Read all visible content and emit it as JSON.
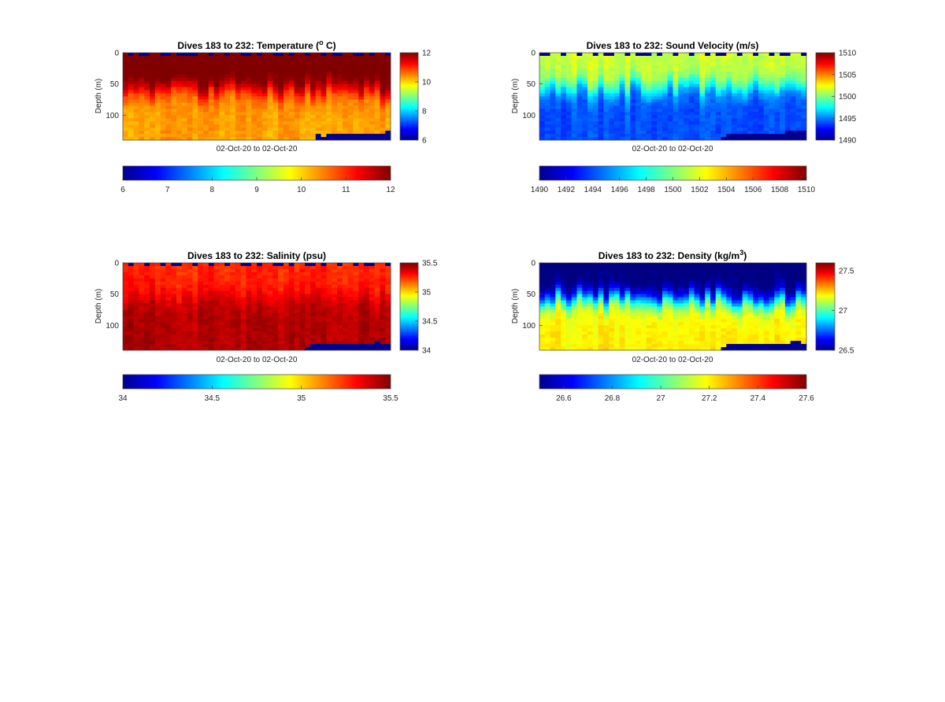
{
  "chart_data": [
    {
      "type": "heatmap",
      "title": "Dives 183 to 232: Temperature (",
      "title_sup": "o",
      "title_tail": " C)",
      "variable": "temperature",
      "xlabel": "02-Oct-20 to 02-Oct-20",
      "ylabel": "Depth (m)",
      "y_ticks": [
        "0",
        "50",
        "100"
      ],
      "y_tick_values": [
        0,
        50,
        100
      ],
      "ylim": [
        0,
        140
      ],
      "clim": [
        6,
        12
      ],
      "colormap": "jet",
      "side_colorbar_ticks": [
        "6",
        "8",
        "10",
        "12"
      ],
      "side_colorbar_values": [
        6,
        8,
        10,
        12
      ],
      "bottom_colorbar_ticks": [
        "6",
        "7",
        "8",
        "9",
        "10",
        "11",
        "12"
      ],
      "bottom_colorbar_values": [
        6,
        7,
        8,
        9,
        10,
        11,
        12
      ],
      "columns": 50,
      "profile": {
        "surface_value": 12.2,
        "deep_value": 10.3,
        "thermocline_depth_m": 62,
        "thermocline_variation_m": 12
      },
      "seafloor_start_fraction": 0.72
    },
    {
      "type": "heatmap",
      "title": "Dives 183 to 232: Sound Velocity (m/s)",
      "title_sup": "",
      "title_tail": "",
      "variable": "sound_velocity",
      "xlabel": "02-Oct-20 to 02-Oct-20",
      "ylabel": "Depth (m)",
      "y_ticks": [
        "0",
        "50",
        "100"
      ],
      "y_tick_values": [
        0,
        50,
        100
      ],
      "ylim": [
        0,
        140
      ],
      "clim": [
        1490,
        1510
      ],
      "colormap": "jet",
      "side_colorbar_ticks": [
        "1490",
        "1495",
        "1500",
        "1505",
        "1510"
      ],
      "side_colorbar_values": [
        1490,
        1495,
        1500,
        1505,
        1510
      ],
      "bottom_colorbar_ticks": [
        "1490",
        "1492",
        "1494",
        "1496",
        "1498",
        "1500",
        "1502",
        "1504",
        "1506",
        "1508",
        "1510"
      ],
      "bottom_colorbar_values": [
        1490,
        1492,
        1494,
        1496,
        1498,
        1500,
        1502,
        1504,
        1506,
        1508,
        1510
      ],
      "columns": 50,
      "profile": {
        "surface_value": 1501.5,
        "deep_value": 1494.0,
        "thermocline_depth_m": 55,
        "thermocline_variation_m": 12
      },
      "seafloor_start_fraction": 0.67
    },
    {
      "type": "heatmap",
      "title": "Dives 183 to 232: Salinity (psu)",
      "title_sup": "",
      "title_tail": "",
      "variable": "salinity",
      "xlabel": "02-Oct-20 to 02-Oct-20",
      "ylabel": "Depth (m)",
      "y_ticks": [
        "0",
        "50",
        "100"
      ],
      "y_tick_values": [
        0,
        50,
        100
      ],
      "ylim": [
        0,
        140
      ],
      "clim": [
        34,
        35.5
      ],
      "colormap": "jet",
      "side_colorbar_ticks": [
        "34",
        "34.5",
        "35",
        "35.5"
      ],
      "side_colorbar_values": [
        34,
        34.5,
        35,
        35.5
      ],
      "bottom_colorbar_ticks": [
        "34",
        "34.5",
        "35",
        "35.5"
      ],
      "bottom_colorbar_values": [
        34,
        34.5,
        35,
        35.5
      ],
      "columns": 50,
      "profile": {
        "surface_value": 35.25,
        "deep_value": 35.42,
        "thermocline_depth_m": 55,
        "thermocline_variation_m": 12
      },
      "seafloor_start_fraction": 0.67
    },
    {
      "type": "heatmap",
      "title": "Dives 183 to 232: Density (kg/m",
      "title_sup": "3",
      "title_tail": ")",
      "variable": "density",
      "xlabel": "02-Oct-20 to 02-Oct-20",
      "ylabel": "Depth (m)",
      "y_ticks": [
        "0",
        "50",
        "100"
      ],
      "y_tick_values": [
        0,
        50,
        100
      ],
      "ylim": [
        0,
        140
      ],
      "clim": [
        26.5,
        27.6
      ],
      "colormap": "jet",
      "side_colorbar_ticks": [
        "26.5",
        "27",
        "27.5"
      ],
      "side_colorbar_values": [
        26.5,
        27,
        27.5
      ],
      "bottom_colorbar_ticks": [
        "26.6",
        "26.8",
        "27",
        "27.2",
        "27.4",
        "27.6"
      ],
      "bottom_colorbar_values": [
        26.6,
        26.8,
        27,
        27.2,
        27.4,
        27.6
      ],
      "columns": 50,
      "profile": {
        "surface_value": 26.48,
        "deep_value": 27.2,
        "thermocline_depth_m": 58,
        "thermocline_variation_m": 12
      },
      "seafloor_start_fraction": 0.67
    }
  ],
  "colors": {
    "no_data": "#00008f",
    "jet_low": "#00008f",
    "jet_high": "#800000"
  }
}
